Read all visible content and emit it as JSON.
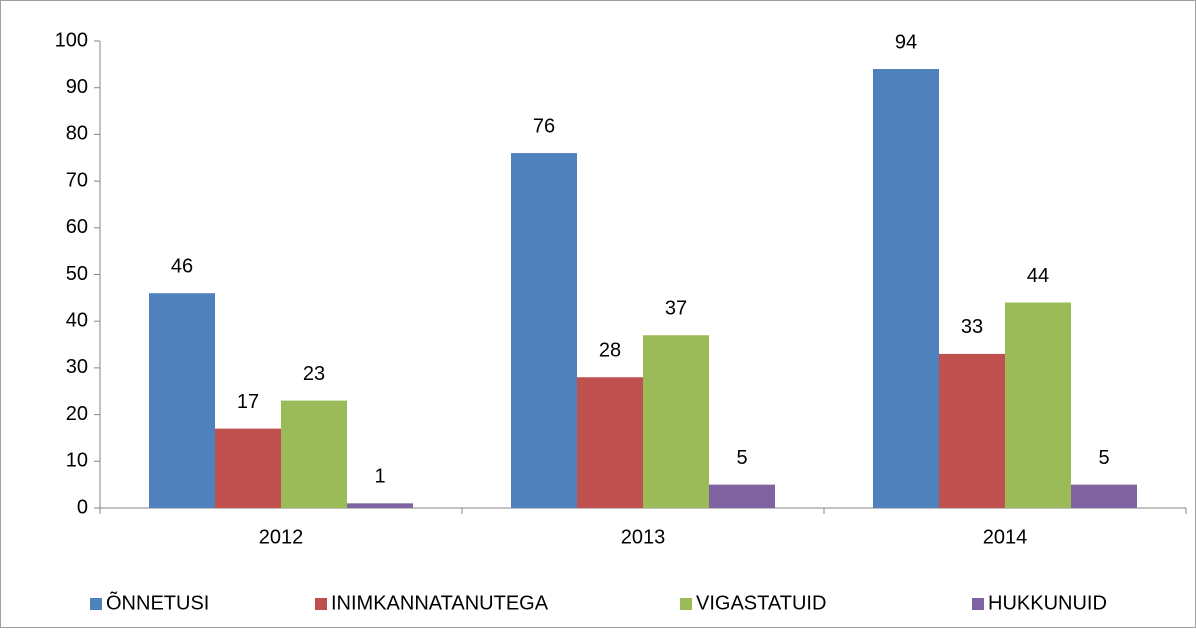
{
  "chart_data": {
    "type": "bar",
    "categories": [
      "2012",
      "2013",
      "2014"
    ],
    "series": [
      {
        "name": "ÕNNETUSI",
        "color": "#4f81bd",
        "values": [
          46,
          76,
          94
        ]
      },
      {
        "name": "INIMKANNATANUTEGA",
        "color": "#c0504d",
        "values": [
          17,
          28,
          33
        ]
      },
      {
        "name": "VIGASTATUID",
        "color": "#9bbb59",
        "values": [
          23,
          37,
          44
        ]
      },
      {
        "name": "HUKKUNUID",
        "color": "#8064a2",
        "values": [
          1,
          5,
          5
        ]
      }
    ],
    "ylim": [
      0,
      100
    ],
    "yticks": [
      0,
      10,
      20,
      30,
      40,
      50,
      60,
      70,
      80,
      90,
      100
    ],
    "grid": false,
    "data_labels": true,
    "legend": "bottom"
  }
}
